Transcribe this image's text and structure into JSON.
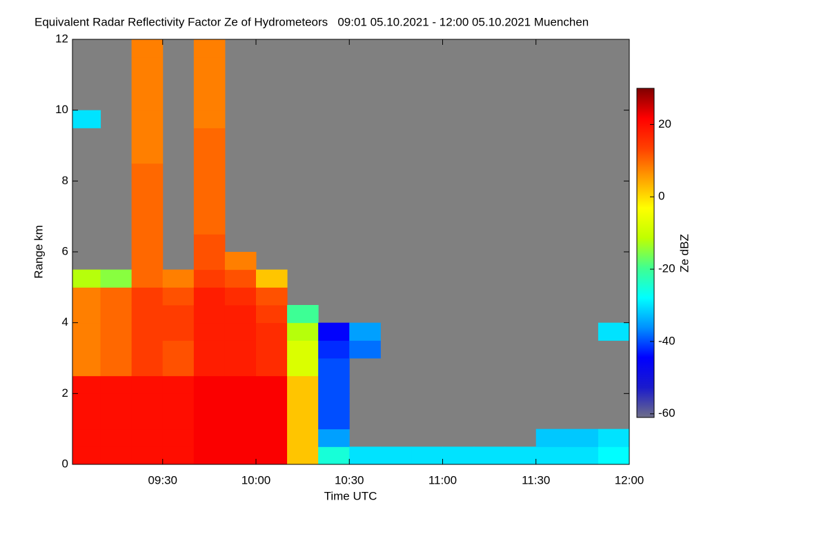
{
  "chart_data": {
    "type": "heatmap",
    "title": "Equivalent Radar Reflectivity Factor Ze of Hydrometeors   09:01 05.10.2021 - 12:00 05.10.2021 Muenchen",
    "x_label": "Time UTC",
    "y_label": "Range km",
    "colorbar_label": "Ze dBZ",
    "x": [
      541,
      550,
      560,
      570,
      580,
      590,
      600,
      610,
      620,
      630,
      640,
      650,
      660,
      670,
      680,
      690,
      700,
      710
    ],
    "y": [
      0,
      0.5,
      1,
      1.5,
      2,
      2.5,
      3,
      3.5,
      4,
      4.5,
      5,
      5.5,
      6,
      6.5,
      7,
      7.5,
      8,
      8.5,
      9,
      9.5,
      10,
      10.5,
      11,
      11.5
    ],
    "values": [
      [
        20,
        20,
        20,
        20,
        20,
        8,
        8,
        8,
        8,
        8,
        -12,
        null,
        null,
        null,
        null,
        null,
        null,
        null,
        null,
        -30,
        null,
        null,
        null,
        null
      ],
      [
        20,
        20,
        20,
        20,
        20,
        10,
        10,
        10,
        10,
        10,
        -15,
        null,
        null,
        null,
        null,
        null,
        null,
        null,
        null,
        null,
        null,
        null,
        null,
        null
      ],
      [
        20,
        20,
        20,
        20,
        20,
        14,
        14,
        14,
        14,
        14,
        10,
        10,
        10,
        10,
        10,
        10,
        10,
        8,
        8,
        8,
        8,
        8,
        8,
        8
      ],
      [
        20,
        20,
        20,
        20,
        20,
        12,
        12,
        14,
        14,
        12,
        8,
        null,
        null,
        null,
        null,
        null,
        null,
        null,
        null,
        null,
        null,
        null,
        null,
        null
      ],
      [
        22,
        22,
        22,
        22,
        22,
        18,
        18,
        18,
        18,
        18,
        14,
        12,
        12,
        10,
        10,
        10,
        10,
        10,
        10,
        8,
        8,
        8,
        8,
        8
      ],
      [
        22,
        22,
        22,
        22,
        22,
        18,
        18,
        18,
        18,
        16,
        12,
        8,
        null,
        null,
        null,
        null,
        null,
        null,
        null,
        null,
        null,
        null,
        null,
        null
      ],
      [
        22,
        22,
        22,
        22,
        22,
        16,
        16,
        16,
        14,
        12,
        2,
        null,
        null,
        null,
        null,
        null,
        null,
        null,
        null,
        null,
        null,
        null,
        null,
        null
      ],
      [
        2,
        2,
        2,
        2,
        2,
        -8,
        -8,
        -12,
        -20,
        null,
        null,
        null,
        null,
        null,
        null,
        null,
        null,
        null,
        null,
        null,
        null,
        null,
        null,
        null
      ],
      [
        -25,
        -35,
        -40,
        -40,
        -40,
        -40,
        -42,
        -45,
        null,
        null,
        null,
        null,
        null,
        null,
        null,
        null,
        null,
        null,
        null,
        null,
        null,
        null,
        null,
        null
      ],
      [
        -30,
        null,
        null,
        null,
        null,
        null,
        -38,
        -35,
        null,
        null,
        null,
        null,
        null,
        null,
        null,
        null,
        null,
        null,
        null,
        null,
        null,
        null,
        null,
        null
      ],
      [
        -30,
        null,
        null,
        null,
        null,
        null,
        null,
        null,
        null,
        null,
        null,
        null,
        null,
        null,
        null,
        null,
        null,
        null,
        null,
        null,
        null,
        null,
        null,
        null
      ],
      [
        -30,
        null,
        null,
        null,
        null,
        null,
        null,
        null,
        null,
        null,
        null,
        null,
        null,
        null,
        null,
        null,
        null,
        null,
        null,
        null,
        null,
        null,
        null,
        null
      ],
      [
        -30,
        null,
        null,
        null,
        null,
        null,
        null,
        null,
        null,
        null,
        null,
        null,
        null,
        null,
        null,
        null,
        null,
        null,
        null,
        null,
        null,
        null,
        null,
        null
      ],
      [
        -30,
        null,
        null,
        null,
        null,
        null,
        null,
        null,
        null,
        null,
        null,
        null,
        null,
        null,
        null,
        null,
        null,
        null,
        null,
        null,
        null,
        null,
        null,
        null
      ],
      [
        -30,
        null,
        null,
        null,
        null,
        null,
        null,
        null,
        null,
        null,
        null,
        null,
        null,
        null,
        null,
        null,
        null,
        null,
        null,
        null,
        null,
        null,
        null,
        null
      ],
      [
        -30,
        -32,
        null,
        null,
        null,
        null,
        null,
        null,
        null,
        null,
        null,
        null,
        null,
        null,
        null,
        null,
        null,
        null,
        null,
        null,
        null,
        null,
        null,
        null
      ],
      [
        -30,
        -32,
        null,
        null,
        null,
        null,
        null,
        null,
        null,
        null,
        null,
        null,
        null,
        null,
        null,
        null,
        null,
        null,
        null,
        null,
        null,
        null,
        null,
        null
      ],
      [
        -28,
        -30,
        null,
        null,
        null,
        null,
        null,
        -30,
        null,
        null,
        null,
        null,
        null,
        null,
        null,
        null,
        null,
        null,
        null,
        null,
        null,
        null,
        null,
        null
      ]
    ],
    "cell_height": 0.5,
    "xlim": [
      541,
      720
    ],
    "ylim": [
      0,
      12
    ],
    "zlim": [
      -61,
      30
    ],
    "xticks": [
      {
        "value": 570,
        "label": "09:30"
      },
      {
        "value": 600,
        "label": "10:00"
      },
      {
        "value": 630,
        "label": "10:30"
      },
      {
        "value": 660,
        "label": "11:00"
      },
      {
        "value": 690,
        "label": "11:30"
      },
      {
        "value": 720,
        "label": "12:00"
      }
    ],
    "yticks": [
      0,
      2,
      4,
      6,
      8,
      10,
      12
    ],
    "zticks": [
      -60,
      -40,
      -20,
      0,
      20
    ],
    "missing_color": "#808080",
    "colormap": [
      "#6e6e88",
      "#1a1acc",
      "#0000ff",
      "#0090ff",
      "#00ffff",
      "#40ff90",
      "#c0ff00",
      "#ffff00",
      "#ffa000",
      "#ff4000",
      "#ff0000",
      "#800000"
    ]
  }
}
